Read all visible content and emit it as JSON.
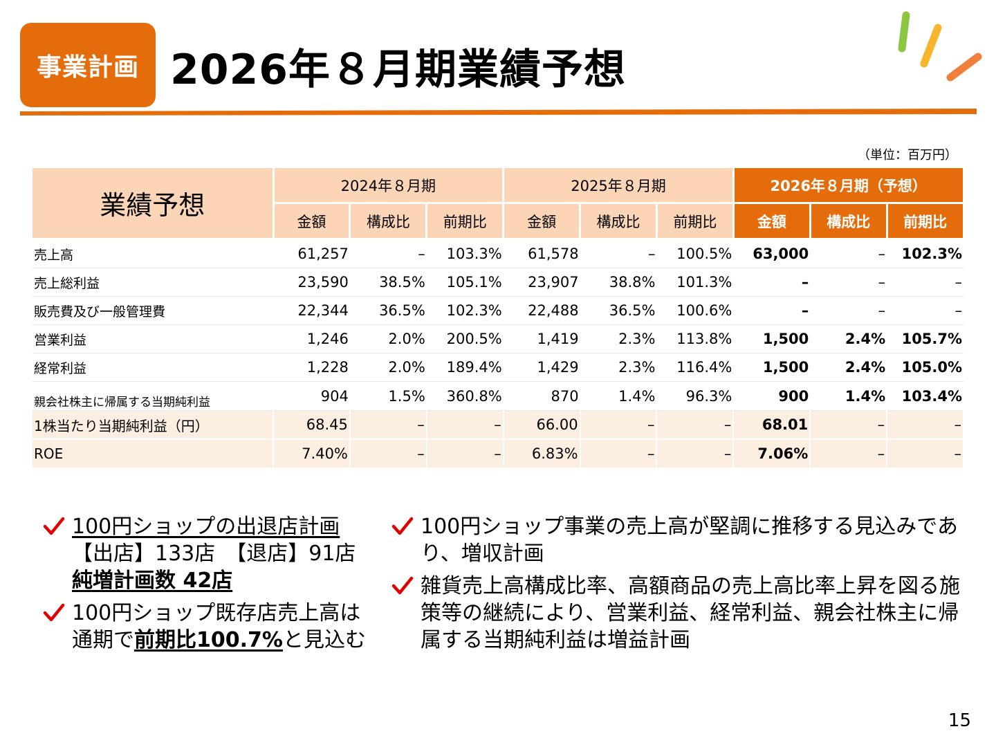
{
  "header": {
    "tag": "事業計画",
    "title": "2026年８月期業績予想"
  },
  "unit_note": "（単位：百万円）",
  "table": {
    "corner": "業績予想",
    "periods": [
      "2024年８月期",
      "2025年８月期",
      "2026年８月期（予想）"
    ],
    "subheaders": [
      "金額",
      "構成比",
      "前期比",
      "金額",
      "構成比",
      "前期比",
      "金額",
      "構成比",
      "前期比"
    ],
    "rows": [
      {
        "label": "売上高",
        "cells": [
          "61,257",
          "–",
          "103.3%",
          "61,578",
          "–",
          "100.5%",
          "63,000",
          "–",
          "102.3%"
        ]
      },
      {
        "label": "売上総利益",
        "cells": [
          "23,590",
          "38.5%",
          "105.1%",
          "23,907",
          "38.8%",
          "101.3%",
          "–",
          "–",
          "–"
        ]
      },
      {
        "label": "販売費及び一般管理費",
        "cells": [
          "22,344",
          "36.5%",
          "102.3%",
          "22,488",
          "36.5%",
          "100.6%",
          "–",
          "–",
          "–"
        ]
      },
      {
        "label": "営業利益",
        "cells": [
          "1,246",
          "2.0%",
          "200.5%",
          "1,419",
          "2.3%",
          "113.8%",
          "1,500",
          "2.4%",
          "105.7%"
        ]
      },
      {
        "label": "経常利益",
        "cells": [
          "1,228",
          "2.0%",
          "189.4%",
          "1,429",
          "2.3%",
          "116.4%",
          "1,500",
          "2.4%",
          "105.0%"
        ]
      },
      {
        "label": "親会社株主に帰属する当期純利益",
        "cells": [
          "904",
          "1.5%",
          "360.8%",
          "870",
          "1.4%",
          "96.3%",
          "900",
          "1.4%",
          "103.4%"
        ]
      },
      {
        "label": "1株当たり当期純利益（円）",
        "cells": [
          "68.45",
          "–",
          "–",
          "66.00",
          "–",
          "–",
          "68.01",
          "–",
          "–"
        ]
      },
      {
        "label": "ROE",
        "cells": [
          "7.40%",
          "–",
          "–",
          "6.83%",
          "–",
          "–",
          "7.06%",
          "–",
          "–"
        ]
      }
    ]
  },
  "bullets_left": [
    {
      "line1": "100円ショップの出退店計画",
      "line2": "【出店】133店　【退店】91店",
      "line3": "純増計画数  42店"
    },
    {
      "line1": "100円ショップ既存店売上高は",
      "line2_pre": "通期で",
      "line2_em": "前期比100.7%",
      "line2_post": "と見込む"
    }
  ],
  "bullets_right": [
    {
      "text": "100円ショップ事業の売上高が堅調に推移する見込みであり、増収計画"
    },
    {
      "text": "雑貨売上高構成比率、高額商品の売上高比率上昇を図る施策等の継続により、営業利益、経常利益、親会社株主に帰属する当期純利益は増益計画"
    }
  ],
  "page_number": "15",
  "colors": {
    "accent": "#e46c0a",
    "header_fill": "#fbd5b5",
    "row_shade": "#fdeee2",
    "check": "#e00000"
  }
}
